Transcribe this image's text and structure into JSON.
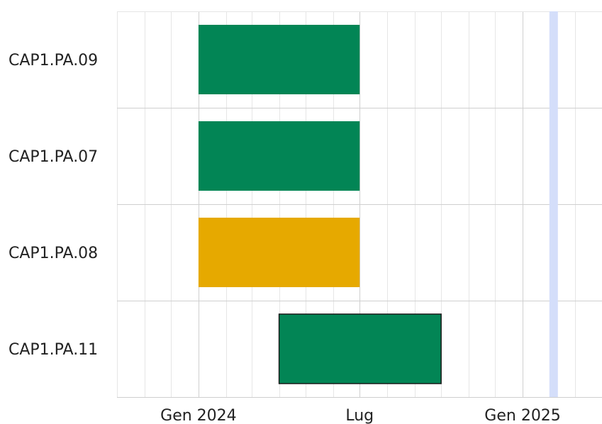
{
  "chart_data": {
    "type": "bar",
    "orientation": "horizontal",
    "subtype": "gantt",
    "title": "",
    "xlabel": "",
    "ylabel": "",
    "x_axis": {
      "type": "date",
      "range": [
        "2023-10-01",
        "2025-03-10"
      ],
      "major_ticks": [
        {
          "date": "2024-01-01",
          "label": "Gen 2024"
        },
        {
          "date": "2024-07-01",
          "label": "Lug"
        },
        {
          "date": "2025-01-01",
          "label": "Gen 2025"
        }
      ],
      "minor_tick_interval_months": 1
    },
    "grid": true,
    "legend": "none",
    "today_marker": {
      "date": "2025-02-05",
      "color": "#d4defa"
    },
    "tasks": [
      {
        "label": "CAP1.PA.09",
        "start": "2024-01-01",
        "end": "2024-07-01",
        "color": "#028555",
        "outlined": false
      },
      {
        "label": "CAP1.PA.07",
        "start": "2024-01-01",
        "end": "2024-07-01",
        "color": "#028555",
        "outlined": false
      },
      {
        "label": "CAP1.PA.08",
        "start": "2024-01-01",
        "end": "2024-07-01",
        "color": "#e6a900",
        "outlined": false
      },
      {
        "label": "CAP1.PA.11",
        "start": "2024-04-01",
        "end": "2024-10-01",
        "color": "#028555",
        "outlined": true
      }
    ]
  }
}
